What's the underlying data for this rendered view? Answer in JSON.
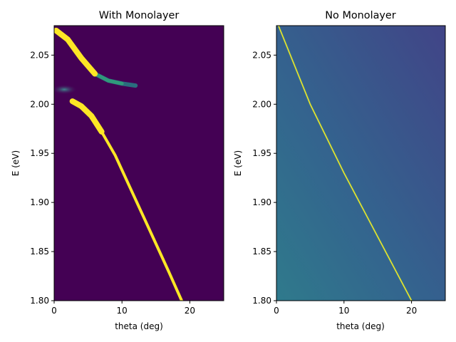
{
  "chart_data": [
    {
      "type": "heatmap",
      "title": "With Monolayer",
      "xlabel": "theta (deg)",
      "ylabel": "E (eV)",
      "xlim": [
        0,
        25
      ],
      "ylim": [
        1.8,
        2.08
      ],
      "xticks": [
        0,
        10,
        20
      ],
      "xtick_labels": [
        "0",
        "10",
        "20"
      ],
      "yticks": [
        1.8,
        1.85,
        1.9,
        1.95,
        2.0,
        2.05
      ],
      "ytick_labels": [
        "1.80",
        "1.85",
        "1.90",
        "1.95",
        "2.00",
        "2.05"
      ],
      "colormap": "viridis",
      "background_color": "#440154",
      "highlight_color": "#fde725",
      "features": {
        "upper_polariton_branch": [
          [
            0.3,
            2.075
          ],
          [
            2.0,
            2.066
          ],
          [
            4.0,
            2.047
          ],
          [
            6.0,
            2.031
          ],
          [
            8.0,
            2.024
          ],
          [
            10.0,
            2.021
          ],
          [
            12.0,
            2.019
          ]
        ],
        "lower_polariton_branch": [
          [
            2.7,
            2.003
          ],
          [
            4.0,
            1.998
          ],
          [
            5.5,
            1.988
          ],
          [
            7.0,
            1.972
          ],
          [
            9.0,
            1.948
          ],
          [
            11.0,
            1.918
          ],
          [
            13.0,
            1.888
          ],
          [
            15.0,
            1.858
          ],
          [
            17.0,
            1.828
          ],
          [
            18.8,
            1.8
          ]
        ],
        "exciton_band": {
          "theta": [
            0,
            3
          ],
          "E": 2.015
        }
      }
    },
    {
      "type": "heatmap",
      "title": "No Monolayer",
      "xlabel": "theta (deg)",
      "ylabel": "E (eV)",
      "xlim": [
        0,
        25
      ],
      "ylim": [
        1.8,
        2.08
      ],
      "xticks": [
        0,
        10,
        20
      ],
      "xtick_labels": [
        "0",
        "10",
        "20"
      ],
      "yticks": [
        1.8,
        1.85,
        1.9,
        1.95,
        2.0,
        2.05
      ],
      "ytick_labels": [
        "1.80",
        "1.85",
        "1.90",
        "1.95",
        "2.00",
        "2.05"
      ],
      "colormap": "viridis",
      "background_color": "#3b528b",
      "highlight_color": "#fde725",
      "features": {
        "cavity_mode": [
          [
            0.3,
            2.08
          ],
          [
            5.0,
            2.0
          ],
          [
            10.0,
            1.93
          ],
          [
            15.0,
            1.865
          ],
          [
            20.0,
            1.8
          ]
        ]
      }
    }
  ]
}
